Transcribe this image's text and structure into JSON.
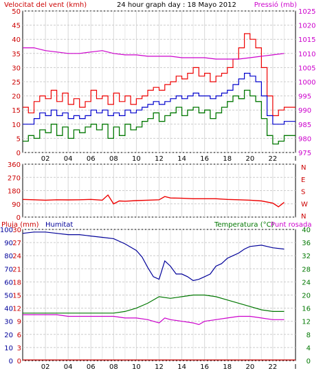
{
  "header": {
    "wind_title": "Velocitat del vent (kmh)",
    "day_title": "24 hour graph day : 18 Mayo 2012",
    "pressure_title": "Pressió (mb)"
  },
  "bottom_header": {
    "rain_title": "Pluja (mm)",
    "humidity_title": "Humitat",
    "temp_title": "Temperatura (°C)",
    "dew_title": "Punt rosada"
  },
  "colors": {
    "wind_gust": "#ee0000",
    "wind_avg": "#0000cc",
    "wind_min": "#007700",
    "pressure": "#cc00cc",
    "direction": "#ee0000",
    "humidity": "#000099",
    "temperature": "#007700",
    "dew": "#cc00cc",
    "rain": "#cc0000",
    "title_red": "#cc0000",
    "title_blue": "#000099",
    "title_green": "#007700",
    "title_magenta": "#cc00cc",
    "title_black": "#000000"
  },
  "chart_data": [
    {
      "type": "line",
      "id": "wind_pressure",
      "title": "24 hour graph day : 18 Mayo 2012",
      "x_ticks": [
        "02",
        "04",
        "06",
        "08",
        "10",
        "12",
        "14",
        "16",
        "18",
        "20",
        "22",
        "I"
      ],
      "xlim": [
        0,
        24
      ],
      "y_left": {
        "label": "Velocitat del vent (kmh)",
        "ticks": [
          0,
          5,
          10,
          15,
          20,
          25,
          30,
          35,
          40,
          45,
          50
        ],
        "ylim": [
          0,
          50
        ]
      },
      "y_right": {
        "label": "Pressió (mb)",
        "ticks": [
          975,
          980,
          985,
          990,
          995,
          1000,
          1005,
          1010,
          1015,
          1020,
          1025
        ],
        "ylim": [
          975,
          1025
        ]
      },
      "series": [
        {
          "name": "gust",
          "axis": "left",
          "x": [
            0,
            0.5,
            1,
            1.5,
            2,
            2.5,
            3,
            3.5,
            4,
            4.5,
            5,
            5.5,
            6,
            6.5,
            7,
            7.5,
            8,
            8.5,
            9,
            9.5,
            10,
            10.5,
            11,
            11.5,
            12,
            12.5,
            13,
            13.5,
            14,
            14.5,
            15,
            15.5,
            16,
            16.5,
            17,
            17.5,
            18,
            18.5,
            19,
            19.5,
            20,
            20.5,
            21,
            21.5,
            22,
            22.5,
            23
          ],
          "values": [
            16,
            14,
            18,
            20,
            19,
            22,
            18,
            21,
            17,
            19,
            16,
            18,
            22,
            19,
            20,
            17,
            21,
            18,
            20,
            17,
            19,
            20,
            22,
            23,
            22,
            24,
            25,
            27,
            26,
            28,
            30,
            27,
            28,
            25,
            27,
            28,
            30,
            33,
            37,
            42,
            40,
            37,
            30,
            20,
            13,
            15,
            16
          ]
        },
        {
          "name": "average",
          "axis": "left",
          "x": [
            0,
            0.5,
            1,
            1.5,
            2,
            2.5,
            3,
            3.5,
            4,
            4.5,
            5,
            5.5,
            6,
            6.5,
            7,
            7.5,
            8,
            8.5,
            9,
            9.5,
            10,
            10.5,
            11,
            11.5,
            12,
            12.5,
            13,
            13.5,
            14,
            14.5,
            15,
            15.5,
            16,
            16.5,
            17,
            17.5,
            18,
            18.5,
            19,
            19.5,
            20,
            20.5,
            21,
            21.5,
            22,
            22.5,
            23
          ],
          "values": [
            10,
            10,
            12,
            14,
            13,
            15,
            13,
            14,
            12,
            13,
            12,
            13,
            15,
            14,
            15,
            13,
            14,
            13,
            15,
            14,
            15,
            16,
            17,
            18,
            17,
            18,
            19,
            20,
            19,
            20,
            21,
            20,
            20,
            19,
            20,
            21,
            22,
            24,
            26,
            28,
            27,
            25,
            20,
            13,
            10,
            10,
            11
          ]
        },
        {
          "name": "minimum",
          "axis": "left",
          "x": [
            0,
            0.5,
            1,
            1.5,
            2,
            2.5,
            3,
            3.5,
            4,
            4.5,
            5,
            5.5,
            6,
            6.5,
            7,
            7.5,
            8,
            8.5,
            9,
            9.5,
            10,
            10.5,
            11,
            11.5,
            12,
            12.5,
            13,
            13.5,
            14,
            14.5,
            15,
            15.5,
            16,
            16.5,
            17,
            17.5,
            18,
            18.5,
            19,
            19.5,
            20,
            20.5,
            21,
            21.5,
            22,
            22.5,
            23
          ],
          "values": [
            4,
            6,
            5,
            8,
            7,
            10,
            6,
            9,
            5,
            8,
            7,
            9,
            10,
            8,
            10,
            5,
            9,
            6,
            10,
            8,
            9,
            11,
            12,
            14,
            11,
            13,
            14,
            16,
            13,
            15,
            16,
            14,
            15,
            12,
            14,
            16,
            18,
            20,
            19,
            22,
            20,
            18,
            12,
            6,
            3,
            4,
            6
          ]
        },
        {
          "name": "pressure",
          "axis": "right",
          "x": [
            0,
            1,
            2,
            3,
            4,
            5,
            6,
            7,
            8,
            9,
            10,
            11,
            12,
            13,
            14,
            15,
            16,
            17,
            18,
            19,
            20,
            21,
            22,
            23
          ],
          "values": [
            1012,
            1012,
            1011,
            1010.5,
            1010,
            1010,
            1010.5,
            1011,
            1010,
            1009.5,
            1009.5,
            1009,
            1009,
            1009,
            1008.5,
            1008.5,
            1008.5,
            1008,
            1008,
            1008,
            1008.5,
            1009,
            1009.5,
            1010
          ]
        }
      ]
    },
    {
      "type": "line",
      "id": "wind_direction",
      "xlim": [
        0,
        24
      ],
      "y_left": {
        "ticks": [
          0,
          90,
          180,
          270,
          360
        ],
        "ylim": [
          0,
          360
        ]
      },
      "y_right": {
        "ticks": [
          "N",
          "W",
          "S",
          "E",
          "N"
        ]
      },
      "series": [
        {
          "name": "direction",
          "x": [
            0,
            1,
            2,
            3,
            4,
            5,
            6,
            7,
            7.5,
            8,
            8.5,
            9,
            10,
            11,
            12,
            12.5,
            13,
            14,
            15,
            16,
            17,
            18,
            19,
            20,
            21,
            22,
            22.5,
            23
          ],
          "values": [
            120,
            118,
            115,
            118,
            117,
            118,
            120,
            115,
            150,
            90,
            110,
            108,
            112,
            115,
            118,
            140,
            130,
            128,
            125,
            125,
            125,
            120,
            118,
            115,
            110,
            95,
            70,
            100
          ]
        }
      ]
    },
    {
      "type": "line",
      "id": "rain_humidity_temp",
      "x_ticks": [
        "02",
        "04",
        "06",
        "08",
        "10",
        "12",
        "14",
        "16",
        "18",
        "20",
        "22",
        "I"
      ],
      "xlim": [
        0,
        24
      ],
      "y_rain": {
        "label": "Pluja (mm)",
        "ticks": [
          0,
          3,
          6,
          9,
          12,
          15,
          18,
          21,
          24,
          27,
          30
        ],
        "ylim": [
          0,
          30
        ]
      },
      "y_humidity": {
        "label": "Humitat",
        "ticks": [
          0,
          10,
          20,
          30,
          40,
          50,
          60,
          70,
          80,
          90,
          100
        ],
        "ylim": [
          0,
          100
        ]
      },
      "y_temp": {
        "label": "Temperatura (°C)",
        "ticks": [
          0,
          4,
          8,
          12,
          16,
          20,
          24,
          28,
          32,
          36,
          40
        ],
        "ylim": [
          0,
          40
        ]
      },
      "series": [
        {
          "name": "Humitat",
          "axis": "humidity",
          "x": [
            0,
            1,
            2,
            3,
            4,
            5,
            6,
            7,
            8,
            9,
            10,
            10.5,
            11,
            11.5,
            12,
            12.5,
            13,
            13.5,
            14,
            14.5,
            15,
            15.5,
            16,
            16.5,
            17,
            17.5,
            18,
            18.5,
            19,
            19.5,
            20,
            21,
            22,
            23
          ],
          "values": [
            97,
            98,
            98,
            97,
            96,
            96,
            95,
            94,
            93,
            89,
            84,
            79,
            71,
            64,
            62,
            76,
            72,
            66,
            66,
            64,
            61,
            62,
            64,
            66,
            72,
            74,
            78,
            80,
            82,
            85,
            87,
            88,
            86,
            85
          ]
        },
        {
          "name": "Temperatura (°C)",
          "axis": "temp",
          "x": [
            0,
            1,
            2,
            3,
            4,
            5,
            6,
            7,
            8,
            9,
            10,
            11,
            12,
            13,
            14,
            15,
            16,
            17,
            18,
            19,
            20,
            21,
            22,
            23
          ],
          "values": [
            14.5,
            14.5,
            14.5,
            14.5,
            14.5,
            14.5,
            14.5,
            14.5,
            14.5,
            15,
            16,
            17.5,
            19.5,
            19,
            19.5,
            20,
            20,
            19.5,
            18.5,
            17.5,
            16.5,
            15.5,
            15,
            15
          ]
        },
        {
          "name": "Punt rosada",
          "axis": "temp",
          "x": [
            0,
            1,
            2,
            3,
            4,
            5,
            6,
            7,
            8,
            9,
            10,
            11,
            12,
            12.5,
            13,
            14,
            15,
            15.5,
            16,
            17,
            18,
            19,
            20,
            21,
            22,
            23
          ],
          "values": [
            14,
            14,
            14,
            14,
            13.5,
            13.5,
            13.5,
            13.5,
            13.5,
            13,
            13,
            12.5,
            11.5,
            13,
            12.5,
            12,
            11.5,
            11,
            12,
            12.5,
            13,
            13.5,
            13.5,
            13,
            12.5,
            12.5
          ]
        },
        {
          "name": "Pluja (mm)",
          "axis": "rain",
          "x": [
            0,
            23
          ],
          "values": [
            0,
            0
          ]
        }
      ]
    }
  ]
}
